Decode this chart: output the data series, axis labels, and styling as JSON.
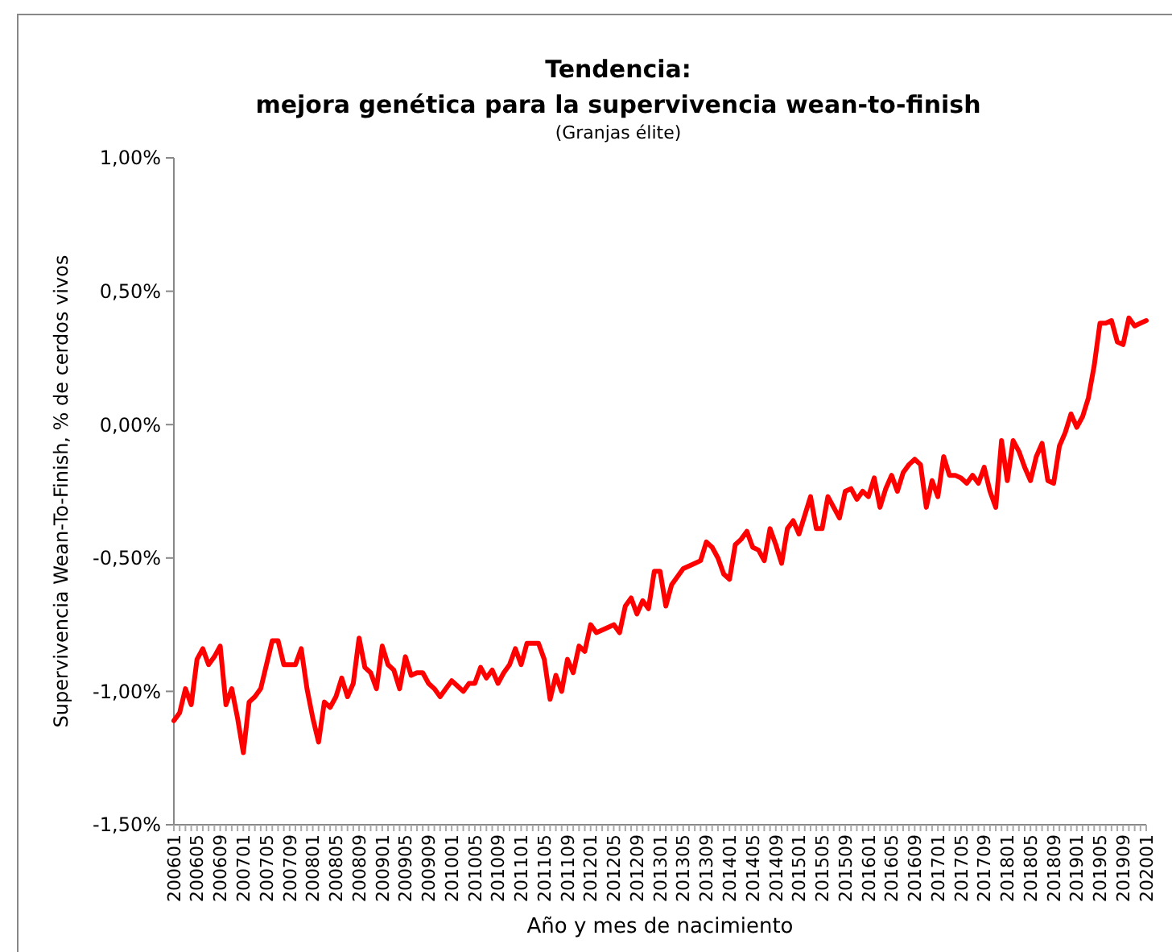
{
  "chart_data": {
    "type": "line",
    "title": "Tendencia:\nmejora genética para la supervivencia wean-to-finish",
    "subtitle": "(Granjas élite)",
    "xlabel": "Año y mes de nacimiento",
    "ylabel": "Supervivencia Wean-To-Finish, % de cerdos vivos",
    "categories": [
      "200601",
      null,
      null,
      null,
      "200605",
      null,
      null,
      null,
      "200609",
      null,
      null,
      null,
      "200701",
      null,
      null,
      null,
      "200705",
      null,
      null,
      null,
      "200709",
      null,
      null,
      null,
      "200801",
      null,
      null,
      null,
      "200805",
      null,
      null,
      null,
      "200809",
      null,
      null,
      null,
      "200901",
      null,
      null,
      null,
      "200905",
      null,
      null,
      null,
      "200909",
      null,
      null,
      null,
      "201001",
      null,
      null,
      null,
      "201005",
      null,
      null,
      null,
      "201009",
      null,
      null,
      null,
      "201101",
      null,
      null,
      null,
      "201105",
      null,
      null,
      null,
      "201109",
      null,
      null,
      null,
      "201201",
      null,
      null,
      null,
      "201205",
      null,
      null,
      null,
      "201209",
      null,
      null,
      null,
      "201301",
      null,
      null,
      null,
      "201305",
      null,
      null,
      null,
      "201309",
      null,
      null,
      null,
      "201401",
      null,
      null,
      null,
      "201405",
      null,
      null,
      null,
      "201409",
      null,
      null,
      null,
      "201501",
      null,
      null,
      null,
      "201505",
      null,
      null,
      null,
      "201509",
      null,
      null,
      null,
      "201601",
      null,
      null,
      null,
      "201605",
      null,
      null,
      null,
      "201609",
      null,
      null,
      null,
      "201701",
      null,
      null,
      null,
      "201705",
      null,
      null,
      null,
      "201709",
      null,
      null,
      null,
      "201801",
      null,
      null,
      null,
      "201805",
      null,
      null,
      null,
      "201809",
      null,
      null,
      null,
      "201901",
      null,
      null,
      null,
      "201905",
      null,
      null,
      null,
      "201909",
      null,
      null,
      null,
      "202001"
    ],
    "series": [
      {
        "color": "#ff0000",
        "values": [
          -1.11,
          -1.08,
          -0.99,
          -1.05,
          -0.88,
          -0.84,
          -0.9,
          -0.87,
          -0.83,
          -1.05,
          -0.99,
          -1.1,
          -1.23,
          -1.04,
          -1.02,
          -0.99,
          -0.9,
          -0.81,
          -0.81,
          -0.9,
          -0.9,
          -0.9,
          -0.84,
          -0.99,
          -1.1,
          -1.19,
          -1.04,
          -1.06,
          -1.02,
          -0.95,
          -1.02,
          -0.97,
          -0.8,
          -0.91,
          -0.93,
          -0.99,
          -0.83,
          -0.9,
          -0.92,
          -0.99,
          -0.87,
          -0.94,
          -0.93,
          -0.93,
          -0.97,
          -0.99,
          -1.02,
          -0.99,
          -0.96,
          -0.98,
          -1.0,
          -0.97,
          -0.97,
          -0.91,
          -0.95,
          -0.92,
          -0.97,
          -0.93,
          -0.9,
          -0.84,
          -0.9,
          -0.82,
          -0.82,
          -0.82,
          -0.88,
          -1.03,
          -0.94,
          -1.0,
          -0.88,
          -0.93,
          -0.83,
          -0.85,
          -0.75,
          -0.78,
          -0.77,
          -0.76,
          -0.75,
          -0.78,
          -0.68,
          -0.65,
          -0.71,
          -0.66,
          -0.69,
          -0.55,
          -0.55,
          -0.68,
          -0.6,
          -0.57,
          -0.54,
          -0.53,
          -0.52,
          -0.51,
          -0.44,
          -0.46,
          -0.5,
          -0.56,
          -0.58,
          -0.45,
          -0.43,
          -0.4,
          -0.46,
          -0.47,
          -0.51,
          -0.39,
          -0.45,
          -0.52,
          -0.39,
          -0.36,
          -0.41,
          -0.34,
          -0.27,
          -0.39,
          -0.39,
          -0.27,
          -0.31,
          -0.35,
          -0.25,
          -0.24,
          -0.28,
          -0.25,
          -0.27,
          -0.2,
          -0.31,
          -0.24,
          -0.19,
          -0.25,
          -0.18,
          -0.15,
          -0.13,
          -0.15,
          -0.31,
          -0.21,
          -0.27,
          -0.12,
          -0.19,
          -0.19,
          -0.2,
          -0.22,
          -0.19,
          -0.22,
          -0.16,
          -0.25,
          -0.31,
          -0.06,
          -0.21,
          -0.06,
          -0.1,
          -0.16,
          -0.21,
          -0.12,
          -0.07,
          -0.21,
          -0.22,
          -0.08,
          -0.03,
          0.04,
          -0.01,
          0.03,
          0.1,
          0.22,
          0.38,
          0.38,
          0.39,
          0.31,
          0.3,
          0.4,
          0.37,
          0.38,
          0.39
        ]
      }
    ],
    "ylim": [
      -1.5,
      1
    ],
    "yticks": [
      {
        "value": -1.5,
        "label": "-1,50%"
      },
      {
        "value": -1,
        "label": "-1,00%"
      },
      {
        "value": -0.5,
        "label": "-0,50%"
      },
      {
        "value": 0,
        "label": "0,00%"
      },
      {
        "value": 0.5,
        "label": "0,50%"
      },
      {
        "value": 1,
        "label": "1,00%"
      }
    ],
    "line_style": "solid"
  }
}
